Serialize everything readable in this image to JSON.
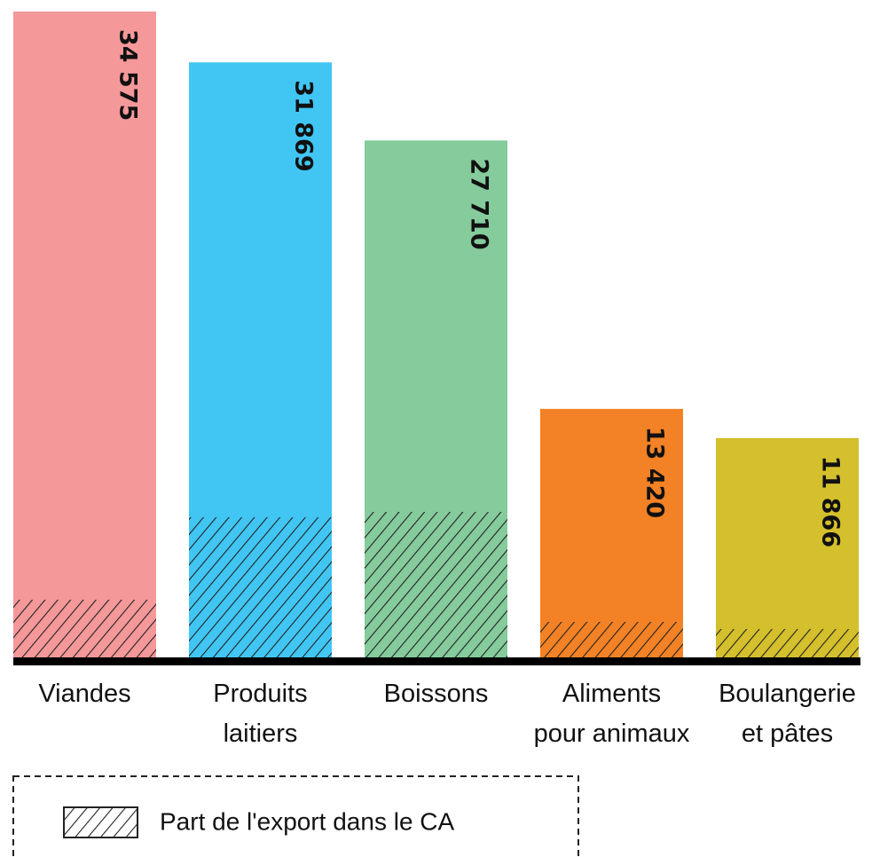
{
  "chart_data": {
    "type": "bar",
    "categories": [
      [
        "Viandes"
      ],
      [
        "Produits",
        "laitiers"
      ],
      [
        "Boissons"
      ],
      [
        "Aliments",
        "pour animaux"
      ],
      [
        "Boulangerie",
        "et pâtes"
      ]
    ],
    "values": [
      34575,
      31869,
      27710,
      13420,
      11866
    ],
    "value_labels": [
      "34 575",
      "31 869",
      "27 710",
      "13 420",
      "11 866"
    ],
    "colors": [
      "#f4989a",
      "#41c6f3",
      "#85cb9c",
      "#f28225",
      "#d4bf2d"
    ],
    "export": {
      "name": "Part de l'export dans le CA",
      "values": [
        3260,
        7650,
        7935,
        2080,
        1700
      ]
    },
    "legend": "bottom-left"
  }
}
